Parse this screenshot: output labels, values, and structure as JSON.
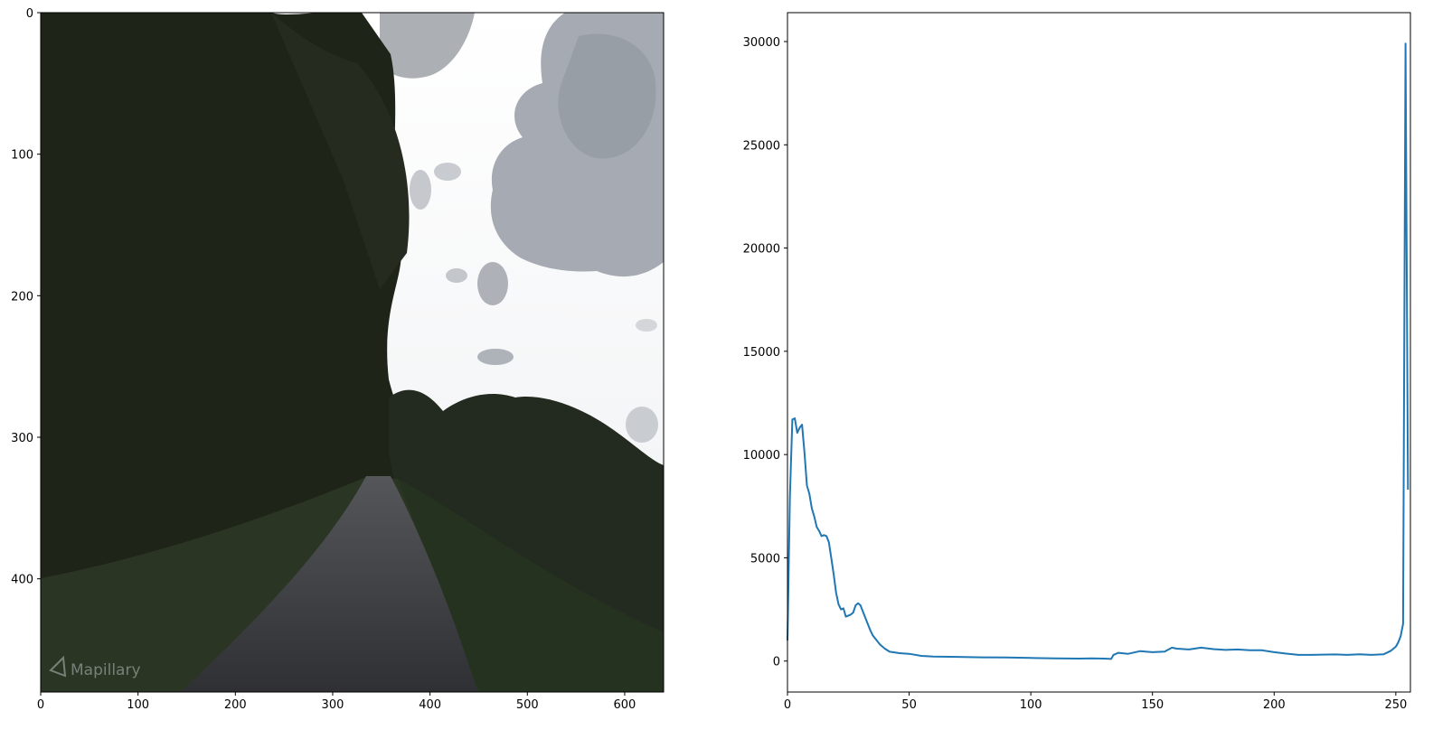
{
  "colors": {
    "line": "#1f77b4",
    "sky": "#f2f3f4",
    "cloud": "#a9adb4",
    "foliage": "#1d2219",
    "road": "#3a3b40",
    "grass": "#2a3a22"
  },
  "chart_data": [
    {
      "type": "image",
      "xlim": [
        0,
        640
      ],
      "ylim": [
        480,
        0
      ],
      "xticks": [
        0,
        100,
        200,
        300,
        400,
        500,
        600
      ],
      "yticks": [
        0,
        100,
        200,
        300,
        400
      ],
      "watermark": "Mapillary",
      "scene": "forest-road-with-cloudy-sky"
    },
    {
      "type": "line",
      "xlim": [
        0,
        256
      ],
      "ylim": [
        -1500,
        31400
      ],
      "xticks": [
        0,
        50,
        100,
        150,
        200,
        250
      ],
      "yticks": [
        0,
        5000,
        10000,
        15000,
        20000,
        25000,
        30000
      ],
      "series": [
        {
          "x": [
            0,
            1,
            2,
            3,
            4,
            5,
            6,
            7,
            8,
            9,
            10,
            11,
            12,
            13,
            14,
            15,
            16,
            17,
            18,
            19,
            20,
            21,
            22,
            23,
            24,
            25,
            26,
            27,
            28,
            29,
            30,
            31,
            32,
            33,
            34,
            35,
            36,
            38,
            40,
            42,
            44,
            46,
            50,
            55,
            60,
            70,
            80,
            90,
            100,
            110,
            120,
            125,
            130,
            133,
            134,
            136,
            140,
            145,
            150,
            155,
            158,
            160,
            165,
            170,
            175,
            180,
            185,
            190,
            195,
            200,
            205,
            210,
            215,
            220,
            225,
            230,
            235,
            240,
            245,
            248,
            250,
            251,
            252,
            253,
            254,
            255
          ],
          "y": [
            1000,
            8000,
            11700,
            11750,
            11050,
            11300,
            11450,
            10100,
            8500,
            8100,
            7400,
            7000,
            6500,
            6300,
            6050,
            6100,
            6050,
            5750,
            5000,
            4200,
            3300,
            2750,
            2500,
            2550,
            2150,
            2200,
            2250,
            2350,
            2700,
            2800,
            2700,
            2400,
            2100,
            1800,
            1500,
            1250,
            1100,
            800,
            600,
            450,
            420,
            380,
            350,
            250,
            220,
            200,
            180,
            170,
            150,
            130,
            120,
            130,
            120,
            100,
            300,
            400,
            350,
            480,
            430,
            460,
            650,
            600,
            560,
            650,
            580,
            540,
            560,
            520,
            520,
            430,
            360,
            300,
            300,
            310,
            320,
            300,
            330,
            300,
            330,
            500,
            700,
            900,
            1200,
            1800,
            29900,
            8300
          ]
        }
      ]
    }
  ]
}
